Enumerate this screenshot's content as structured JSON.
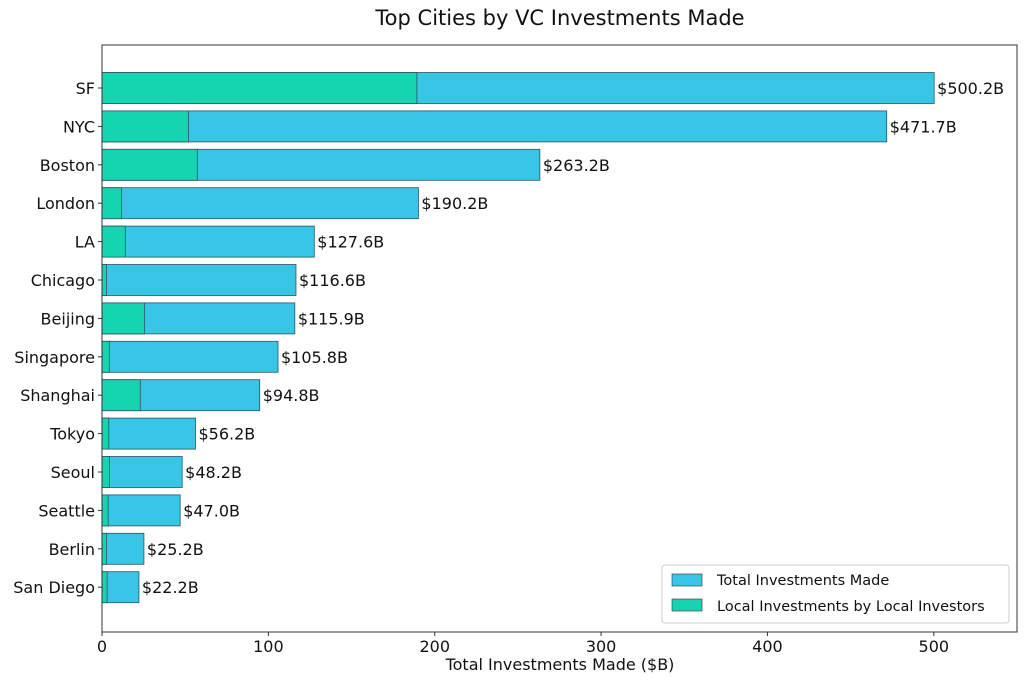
{
  "chart_data": {
    "type": "bar",
    "orientation": "horizontal",
    "stacked": false,
    "title": "Top Cities by VC Investments Made",
    "xlabel": "Total Investments Made ($B)",
    "ylabel": "",
    "xlim": [
      0,
      550
    ],
    "xticks": [
      0,
      100,
      200,
      300,
      400,
      500
    ],
    "grid": false,
    "legend_position": "bottom-right",
    "categories": [
      "SF",
      "NYC",
      "Boston",
      "London",
      "LA",
      "Chicago",
      "Beijing",
      "Singapore",
      "Shanghai",
      "Tokyo",
      "Seoul",
      "Seattle",
      "Berlin",
      "San Diego"
    ],
    "series": [
      {
        "name": "Total Investments Made",
        "color": "#38c5e6",
        "values": [
          500.2,
          471.7,
          263.2,
          190.2,
          127.6,
          116.6,
          115.9,
          105.8,
          94.8,
          56.2,
          48.2,
          47.0,
          25.2,
          22.2
        ]
      },
      {
        "name": "Local Investments by Local Investors",
        "color": "#15d4b0",
        "values": [
          189.3,
          52.0,
          57.3,
          11.8,
          14.0,
          2.7,
          25.5,
          4.4,
          23.0,
          4.1,
          4.5,
          3.7,
          2.7,
          3.1
        ]
      }
    ],
    "data_labels": [
      "$500.2B",
      "$471.7B",
      "$263.2B",
      "$190.2B",
      "$127.6B",
      "$116.6B",
      "$115.9B",
      "$105.8B",
      "$94.8B",
      "$56.2B",
      "$48.2B",
      "$47.0B",
      "$25.2B",
      "$22.2B"
    ]
  }
}
